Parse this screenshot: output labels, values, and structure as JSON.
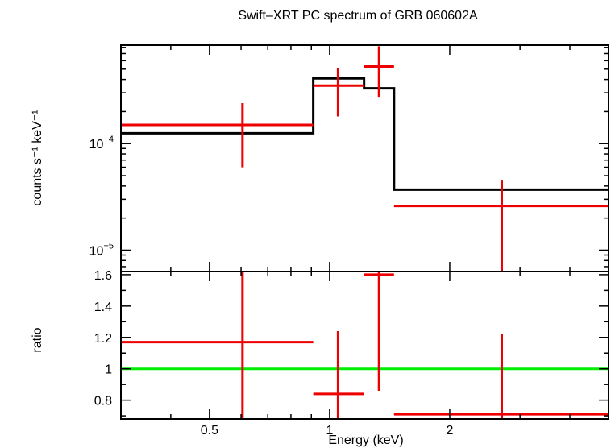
{
  "chart_data": {
    "type": "scatter",
    "title": "Swift–XRT PC spectrum of GRB 060602A",
    "xlabel": "Energy (keV)",
    "x_scale": "log",
    "xlim": [
      0.3,
      5.0
    ],
    "x_ticks": [
      {
        "value": 0.5,
        "label": "0.5"
      },
      {
        "value": 1,
        "label": "1"
      },
      {
        "value": 2,
        "label": "2"
      }
    ],
    "top_panel": {
      "ylabel": "counts s⁻¹ keV⁻¹",
      "y_scale": "log",
      "ylim": [
        6.3e-06,
        0.00084
      ],
      "y_ticks": [
        {
          "value": 0.0001,
          "base": "10",
          "exp": "−4"
        },
        {
          "value": 1e-05,
          "base": "10",
          "exp": "−5"
        }
      ],
      "data": {
        "name": "data",
        "color": "#ee0000",
        "points": [
          {
            "x": 0.605,
            "xlo": 0.3,
            "xhi": 0.91,
            "y": 0.00015,
            "ylo": 6e-05,
            "yhi": 0.00024
          },
          {
            "x": 1.05,
            "xlo": 0.91,
            "xhi": 1.22,
            "y": 0.00035,
            "ylo": 0.00018,
            "yhi": 0.00051
          },
          {
            "x": 1.33,
            "xlo": 1.22,
            "xhi": 1.45,
            "y": 0.00053,
            "ylo": 0.00027,
            "yhi": 0.00082
          },
          {
            "x": 2.7,
            "xlo": 1.45,
            "xhi": 5.0,
            "y": 2.6e-05,
            "ylo": 6.3e-06,
            "yhi": 4.5e-05
          }
        ]
      },
      "model": {
        "name": "model",
        "color": "#000000",
        "steps": [
          {
            "xlo": 0.3,
            "xhi": 0.91,
            "y": 0.000125
          },
          {
            "xlo": 0.91,
            "xhi": 1.22,
            "y": 0.00041
          },
          {
            "xlo": 1.22,
            "xhi": 1.45,
            "y": 0.00033
          },
          {
            "xlo": 1.45,
            "xhi": 5.0,
            "y": 3.7e-05
          }
        ]
      }
    },
    "bottom_panel": {
      "ylabel": "ratio",
      "y_scale": "linear",
      "ylim": [
        0.68,
        1.62
      ],
      "y_ticks": [
        {
          "value": 0.8,
          "label": "0.8"
        },
        {
          "value": 1,
          "label": "1"
        },
        {
          "value": 1.2,
          "label": "1.2"
        },
        {
          "value": 1.4,
          "label": "1.4"
        },
        {
          "value": 1.6,
          "label": "1.6"
        }
      ],
      "reference_line": {
        "y": 1,
        "color": "#00ee00"
      },
      "data": {
        "color": "#ee0000",
        "points": [
          {
            "x": 0.605,
            "xlo": 0.3,
            "xhi": 0.91,
            "y": 1.17,
            "ylo": 0.68,
            "yhi": 1.62
          },
          {
            "x": 1.05,
            "xlo": 0.91,
            "xhi": 1.22,
            "y": 0.84,
            "ylo": 0.68,
            "yhi": 1.24
          },
          {
            "x": 1.33,
            "xlo": 1.22,
            "xhi": 1.45,
            "y": 1.6,
            "ylo": 0.86,
            "yhi": 1.62
          },
          {
            "x": 2.7,
            "xlo": 1.45,
            "xhi": 5.0,
            "y": 0.71,
            "ylo": 0.68,
            "yhi": 1.22
          }
        ]
      }
    }
  }
}
